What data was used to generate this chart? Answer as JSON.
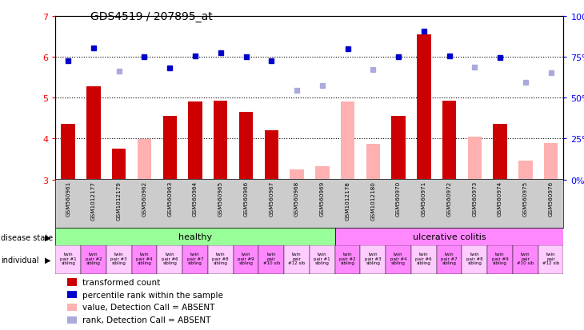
{
  "title": "GDS4519 / 207895_at",
  "samples": [
    "GSM560961",
    "GSM1012177",
    "GSM1012179",
    "GSM560962",
    "GSM560963",
    "GSM560964",
    "GSM560965",
    "GSM560966",
    "GSM560967",
    "GSM560968",
    "GSM560969",
    "GSM1012178",
    "GSM1012180",
    "GSM560970",
    "GSM560971",
    "GSM560972",
    "GSM560973",
    "GSM560974",
    "GSM560975",
    "GSM560976"
  ],
  "bar_values": [
    4.35,
    5.28,
    3.75,
    null,
    4.55,
    4.9,
    4.92,
    4.65,
    4.2,
    null,
    null,
    null,
    null,
    4.55,
    6.55,
    4.92,
    null,
    4.35,
    null,
    null
  ],
  "bar_absent": [
    null,
    null,
    null,
    3.98,
    null,
    null,
    null,
    null,
    null,
    3.25,
    3.32,
    4.9,
    3.87,
    null,
    null,
    null,
    4.05,
    null,
    3.47,
    3.9
  ],
  "rank_values": [
    5.9,
    6.22,
    null,
    6.0,
    5.72,
    6.02,
    6.1,
    6.0,
    5.9,
    null,
    null,
    6.2,
    null,
    6.0,
    6.62,
    6.02,
    null,
    5.97,
    null,
    null
  ],
  "rank_absent": [
    null,
    null,
    5.65,
    null,
    null,
    null,
    null,
    null,
    null,
    5.18,
    5.3,
    null,
    5.68,
    null,
    null,
    null,
    5.75,
    null,
    5.37,
    5.6
  ],
  "disease_state": [
    "healthy",
    "healthy",
    "healthy",
    "healthy",
    "healthy",
    "healthy",
    "healthy",
    "healthy",
    "healthy",
    "healthy",
    "healthy",
    "ulcerative colitis",
    "ulcerative colitis",
    "ulcerative colitis",
    "ulcerative colitis",
    "ulcerative colitis",
    "ulcerative colitis",
    "ulcerative colitis",
    "ulcerative colitis",
    "ulcerative colitis"
  ],
  "individual_lines": [
    "twin\npair #1\nsibling",
    "twin\npair #2\nsibling",
    "twin\npair #3\nsibling",
    "twin\npair #4\nsibling",
    "twin\npair #6\nsibling",
    "twin\npair #7\nsibling",
    "twin\npair #8\nsibling",
    "twin\npair #9\nsibling",
    "twin\npair\n#10 sib",
    "twin\npair\n#12 sib",
    "twin\npair #1\nsibling",
    "twin\npair #2\nsibling",
    "twin\npair #3\nsibling",
    "twin\npair #4\nsibling",
    "twin\npair #6\nsibling",
    "twin\npair #7\nsibling",
    "twin\npair #8\nsibling",
    "twin\npair #9\nsibling",
    "twin\npair\n#10 sib",
    "twin\npair\n#12 sib"
  ],
  "n_healthy": 11,
  "ylim_left": [
    3,
    7
  ],
  "ylim_right": [
    0,
    100
  ],
  "yticks_left": [
    3,
    4,
    5,
    6,
    7
  ],
  "yticks_right": [
    0,
    25,
    50,
    75,
    100
  ],
  "bar_color": "#cc0000",
  "bar_absent_color": "#ffb0b0",
  "rank_color": "#0000cc",
  "rank_absent_color": "#aaaadd",
  "healthy_color": "#99ff99",
  "uc_color": "#ff88ff",
  "bg_color": "#ffffff",
  "label_bg_color": "#cccccc",
  "pair_colors": [
    "#ffccff",
    "#ff88ff",
    "#ffccff",
    "#ff88ff",
    "#ffccff",
    "#ff88ff",
    "#ffccff",
    "#ff88ff",
    "#ff88ff",
    "#ffccff",
    "#ffccff",
    "#ff88ff",
    "#ffccff",
    "#ff88ff",
    "#ffccff",
    "#ff88ff",
    "#ffccff",
    "#ff88ff",
    "#ff88ff",
    "#ffccff"
  ]
}
